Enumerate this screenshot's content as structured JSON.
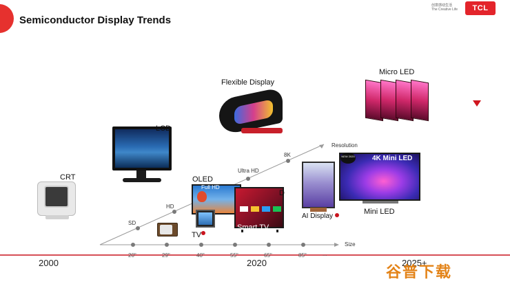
{
  "header": {
    "title": "Semiconductor Display Trends",
    "brand_cn": "创意感动生活",
    "brand_tagline": "The Creative Life",
    "brand_logo": "TCL"
  },
  "technologies": {
    "crt": "CRT",
    "lcd": "LCD",
    "oled": "OLED",
    "full_hd": "Full HD",
    "flexible_display": "Flexible Display",
    "micro_led": "Micro LED",
    "mini_led": "Mini LED",
    "ai_display": "AI Display",
    "smart_tv": "Smart TV",
    "tv": "TV",
    "d_label": "D"
  },
  "resolution_axis": {
    "label": "Resolution",
    "ticks": [
      "SD",
      "HD",
      "Ultra HD",
      "8K"
    ]
  },
  "size_axis": {
    "label": "Size",
    "ticks": [
      "20\"",
      "29\"",
      "40\"",
      "55\"",
      "65\"",
      "85\"",
      "..."
    ]
  },
  "timeline": [
    "2000",
    "2020",
    "2025+"
  ],
  "mini_led_screen_text": "4K Mini LED",
  "mini_led_badge": "NEW 2020",
  "watermark": "谷普下载",
  "colors": {
    "accent_red": "#e3242b",
    "marker_red": "#c9141e",
    "axis_gray": "#7a7a7a",
    "watermark_orange": "#e38318"
  }
}
